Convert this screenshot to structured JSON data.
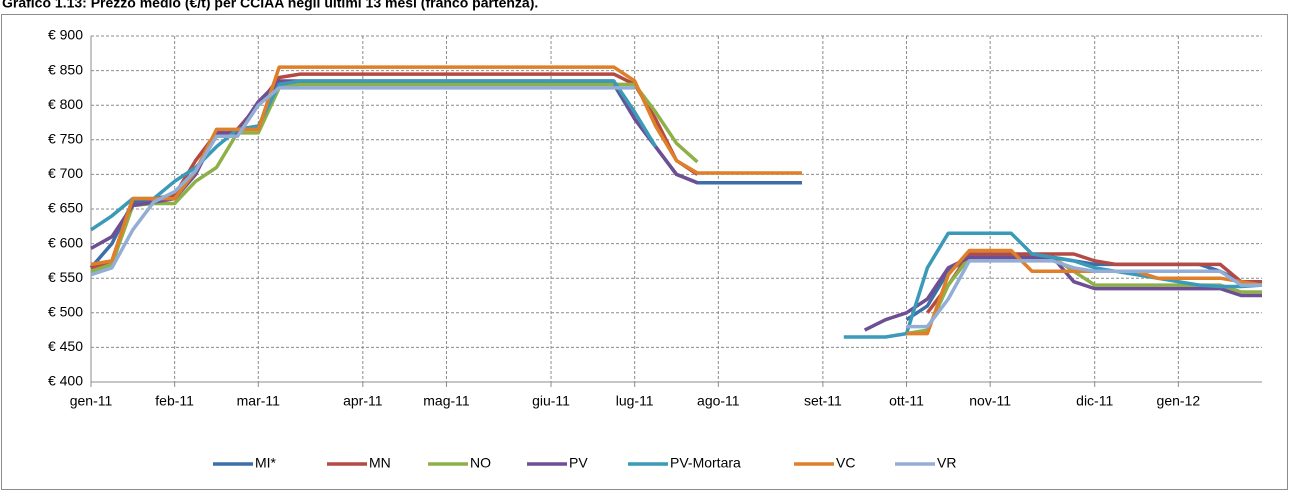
{
  "chart_data": {
    "type": "line",
    "title": "Grafico 1.13: Prezzo medio (€/t) per CCIAA negli ultimi 13 mesi (franco partenza).",
    "categories": [
      "gen-11",
      null,
      null,
      null,
      "feb-11",
      null,
      null,
      null,
      "mar-11",
      null,
      null,
      null,
      null,
      "apr-11",
      null,
      null,
      null,
      "mag-11",
      null,
      null,
      null,
      null,
      "giu-11",
      null,
      null,
      null,
      "lug-11",
      null,
      null,
      null,
      "ago-11",
      null,
      null,
      null,
      null,
      "set-11",
      null,
      null,
      null,
      "ott-11",
      null,
      null,
      null,
      "nov-11",
      null,
      null,
      null,
      null,
      "dic-11",
      null,
      null,
      null,
      "gen-12",
      null,
      null,
      null,
      null
    ],
    "ylim": [
      400,
      900
    ],
    "yticks": [
      {
        "value": 400,
        "label": "€ 400"
      },
      {
        "value": 450,
        "label": "€ 450"
      },
      {
        "value": 500,
        "label": "€ 500"
      },
      {
        "value": 550,
        "label": "€ 550"
      },
      {
        "value": 600,
        "label": "€ 600"
      },
      {
        "value": 650,
        "label": "€ 650"
      },
      {
        "value": 700,
        "label": "€ 700"
      },
      {
        "value": 750,
        "label": "€ 750"
      },
      {
        "value": 800,
        "label": "€ 800"
      },
      {
        "value": 850,
        "label": "€ 850"
      },
      {
        "value": 900,
        "label": "€ 900"
      }
    ],
    "grid": true,
    "legend": "bottom",
    "series": [
      {
        "name": "MI*",
        "color": "#3c6ea8",
        "values": [
          565,
          600,
          660,
          665,
          665,
          700,
          760,
          765,
          800,
          830,
          830,
          830,
          830,
          830,
          830,
          830,
          830,
          830,
          830,
          830,
          830,
          830,
          830,
          830,
          830,
          830,
          780,
          740,
          700,
          688,
          688,
          688,
          688,
          688,
          688,
          null,
          null,
          null,
          null,
          490,
          510,
          560,
          580,
          580,
          580,
          580,
          580,
          575,
          570,
          570,
          570,
          570,
          570,
          570,
          560,
          545,
          545
        ]
      },
      {
        "name": "MN",
        "color": "#b34a43",
        "values": [
          565,
          575,
          665,
          665,
          670,
          720,
          760,
          765,
          800,
          840,
          845,
          845,
          845,
          845,
          845,
          845,
          845,
          845,
          845,
          845,
          845,
          845,
          845,
          845,
          845,
          845,
          830,
          780,
          720,
          700,
          null,
          null,
          null,
          null,
          null,
          null,
          null,
          null,
          null,
          null,
          500,
          540,
          585,
          585,
          585,
          585,
          585,
          585,
          575,
          570,
          570,
          570,
          570,
          570,
          570,
          545,
          545
        ]
      },
      {
        "name": "NO",
        "color": "#8eb048",
        "values": [
          560,
          570,
          655,
          658,
          658,
          690,
          710,
          760,
          760,
          825,
          830,
          830,
          830,
          830,
          830,
          830,
          830,
          830,
          830,
          830,
          830,
          830,
          830,
          830,
          830,
          830,
          830,
          790,
          745,
          718,
          null,
          null,
          null,
          null,
          null,
          null,
          null,
          null,
          null,
          470,
          475,
          540,
          580,
          580,
          580,
          580,
          580,
          560,
          540,
          540,
          540,
          540,
          540,
          540,
          540,
          530,
          530
        ]
      },
      {
        "name": "PV",
        "color": "#6f4f93",
        "values": [
          593,
          610,
          655,
          660,
          665,
          700,
          760,
          760,
          805,
          835,
          835,
          835,
          835,
          835,
          835,
          835,
          835,
          835,
          835,
          835,
          835,
          835,
          835,
          835,
          835,
          835,
          780,
          740,
          700,
          688,
          null,
          null,
          null,
          null,
          null,
          null,
          null,
          475,
          490,
          500,
          520,
          565,
          580,
          580,
          580,
          580,
          580,
          545,
          535,
          535,
          535,
          535,
          535,
          535,
          535,
          525,
          525
        ]
      },
      {
        "name": "PV-Mortara",
        "color": "#3a9ab8",
        "values": [
          620,
          640,
          665,
          665,
          690,
          710,
          740,
          765,
          770,
          830,
          835,
          835,
          835,
          835,
          835,
          835,
          835,
          835,
          835,
          835,
          835,
          835,
          835,
          835,
          835,
          835,
          790,
          740,
          null,
          null,
          null,
          null,
          null,
          null,
          null,
          null,
          465,
          465,
          465,
          470,
          565,
          615,
          615,
          615,
          615,
          585,
          580,
          575,
          565,
          560,
          555,
          550,
          545,
          540,
          538,
          538,
          540
        ]
      },
      {
        "name": "VC",
        "color": "#e07f2a",
        "values": [
          570,
          575,
          665,
          665,
          665,
          705,
          765,
          765,
          765,
          855,
          855,
          855,
          855,
          855,
          855,
          855,
          855,
          855,
          855,
          855,
          855,
          855,
          855,
          855,
          855,
          855,
          835,
          770,
          720,
          702,
          702,
          702,
          702,
          702,
          702,
          null,
          null,
          null,
          null,
          470,
          470,
          555,
          590,
          590,
          590,
          560,
          560,
          560,
          560,
          560,
          560,
          550,
          550,
          550,
          550,
          545,
          540
        ]
      },
      {
        "name": "VR",
        "color": "#93aed6",
        "values": [
          555,
          565,
          620,
          660,
          675,
          705,
          755,
          755,
          800,
          825,
          825,
          825,
          825,
          825,
          825,
          825,
          825,
          825,
          825,
          825,
          825,
          825,
          825,
          825,
          825,
          825,
          825,
          null,
          null,
          null,
          null,
          null,
          null,
          null,
          null,
          null,
          null,
          null,
          null,
          480,
          480,
          520,
          575,
          575,
          575,
          575,
          575,
          565,
          560,
          560,
          560,
          560,
          560,
          560,
          560,
          540,
          540
        ]
      }
    ]
  }
}
